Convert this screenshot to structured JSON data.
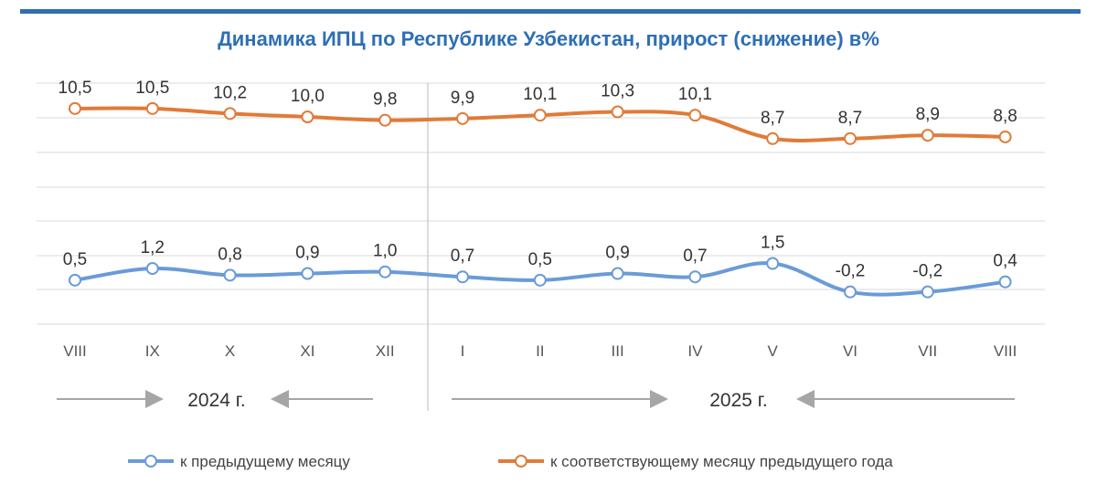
{
  "title": "Динамика ИПЦ по Республике Узбекистан, прирост (снижение) в%",
  "colors": {
    "title": "#2e6fb5",
    "monthly": "#6a9bd8",
    "yearly": "#e07b39",
    "grid": "#d9d9d9",
    "arrow": "#a6a6a6"
  },
  "chart_data": {
    "type": "line",
    "title": "Динамика ИПЦ по Республике Узбекистан, прирост (снижение) в%",
    "categories": [
      "VIII",
      "IX",
      "X",
      "XI",
      "XII",
      "I",
      "II",
      "III",
      "IV",
      "V",
      "VI",
      "VII",
      "VIII"
    ],
    "series": [
      {
        "name": "к предыдущему месяцу",
        "color": "#6a9bd8",
        "values": [
          0.5,
          1.2,
          0.8,
          0.9,
          1.0,
          0.7,
          0.5,
          0.9,
          0.7,
          1.5,
          -0.2,
          -0.2,
          0.4
        ],
        "labels": [
          "0,5",
          "1,2",
          "0,8",
          "0,9",
          "1,0",
          "0,7",
          "0,5",
          "0,9",
          "0,7",
          "1,5",
          "-0,2",
          "-0,2",
          "0,4"
        ]
      },
      {
        "name": "к соответствующему месяцу предыдущего года",
        "color": "#e07b39",
        "values": [
          10.5,
          10.5,
          10.2,
          10.0,
          9.8,
          9.9,
          10.1,
          10.3,
          10.1,
          8.7,
          8.7,
          8.9,
          8.8
        ],
        "labels": [
          "10,5",
          "10,5",
          "10,2",
          "10,0",
          "9,8",
          "9,9",
          "10,1",
          "10,3",
          "10,1",
          "8,7",
          "8,7",
          "8,9",
          "8,8"
        ]
      }
    ],
    "year_groups": [
      {
        "label": "2024 г.",
        "from": 0,
        "to": 4
      },
      {
        "label": "2025 г.",
        "from": 5,
        "to": 12
      }
    ],
    "grid": true,
    "legend_position": "bottom"
  }
}
